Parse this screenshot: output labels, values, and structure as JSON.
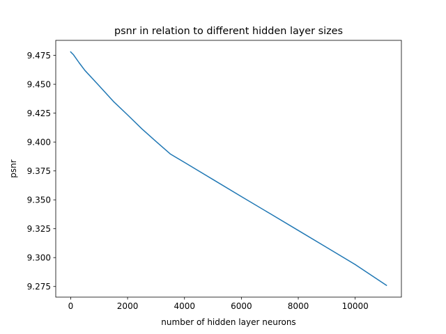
{
  "chart_data": {
    "type": "line",
    "title": "psnr in relation to different hidden layer sizes",
    "xlabel": "number of hidden layer neurons",
    "ylabel": "psnr",
    "xlim": [
      -525,
      11625
    ],
    "ylim": [
      9.2658,
      9.488
    ],
    "xticks": [
      0,
      2000,
      4000,
      6000,
      8000,
      10000
    ],
    "yticks": [
      9.275,
      9.3,
      9.325,
      9.35,
      9.375,
      9.4,
      9.425,
      9.45,
      9.475
    ],
    "grid": false,
    "series": [
      {
        "color": "#1f77b4",
        "x": [
          0,
          100,
          300,
          500,
          1000,
          1500,
          2000,
          2500,
          3000,
          3500,
          4000,
          5000,
          6000,
          7000,
          8000,
          9000,
          10000,
          11100
        ],
        "y": [
          9.478,
          9.4755,
          9.4685,
          9.462,
          9.4487,
          9.4352,
          9.4235,
          9.4115,
          9.4005,
          9.3897,
          9.3824,
          9.3676,
          9.3528,
          9.3382,
          9.3235,
          9.3088,
          9.294,
          9.276
        ]
      }
    ]
  }
}
